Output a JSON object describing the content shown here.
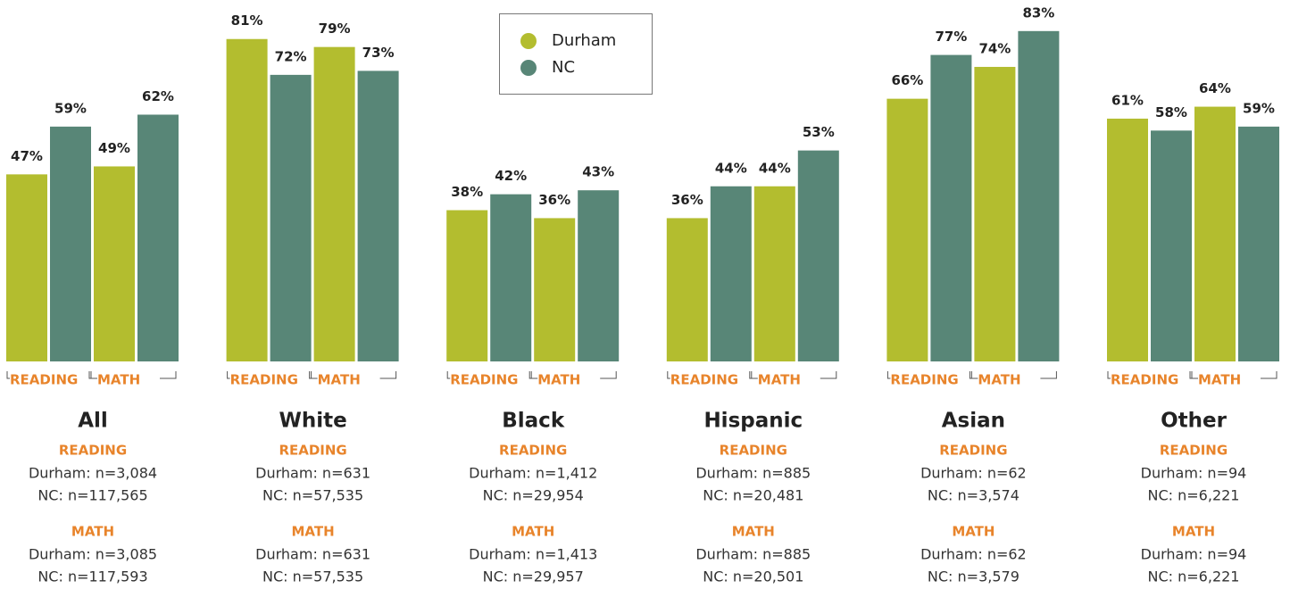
{
  "chart_data": {
    "type": "bar",
    "categories": [
      "All",
      "White",
      "Black",
      "Hispanic",
      "Asian",
      "Other"
    ],
    "subjects": [
      "READING",
      "MATH"
    ],
    "ylim": [
      0,
      100
    ],
    "series": [
      {
        "name": "Durham",
        "color": "#b3bd2f",
        "values": [
          [
            47,
            49
          ],
          [
            81,
            79
          ],
          [
            38,
            36
          ],
          [
            36,
            44
          ],
          [
            66,
            74
          ],
          [
            61,
            64
          ]
        ],
        "value_labels": [
          [
            "47%",
            "49%"
          ],
          [
            "81%",
            "79%"
          ],
          [
            "38%",
            "36%"
          ],
          [
            "36%",
            "44%"
          ],
          [
            "66%",
            "74%"
          ],
          [
            "61%",
            "64%"
          ]
        ]
      },
      {
        "name": "NC",
        "color": "#588677",
        "values": [
          [
            59,
            62
          ],
          [
            72,
            73
          ],
          [
            42,
            43
          ],
          [
            44,
            53
          ],
          [
            77,
            83
          ],
          [
            58,
            59
          ]
        ],
        "value_labels": [
          [
            "59%",
            "62%"
          ],
          [
            "72%",
            "73%"
          ],
          [
            "42%",
            "43%"
          ],
          [
            "44%",
            "53%"
          ],
          [
            "77%",
            "83%"
          ],
          [
            "58%",
            "59%"
          ]
        ]
      }
    ],
    "sample_sizes": [
      [
        [
          "Durham: n=3,084",
          "NC: n=117,565"
        ],
        [
          "Durham: n=3,085",
          "NC: n=117,593"
        ]
      ],
      [
        [
          "Durham: n=631",
          "NC: n=57,535"
        ],
        [
          "Durham: n=631",
          "NC: n=57,535"
        ]
      ],
      [
        [
          "Durham: n=1,412",
          "NC: n=29,954"
        ],
        [
          "Durham: n=1,413",
          "NC: n=29,957"
        ]
      ],
      [
        [
          "Durham: n=885",
          "NC: n=20,481"
        ],
        [
          "Durham: n=885",
          "NC: n=20,501"
        ]
      ],
      [
        [
          "Durham: n=62",
          "NC: n=3,574"
        ],
        [
          "Durham: n=62",
          "NC: n=3,579"
        ]
      ],
      [
        [
          "Durham: n=94",
          "NC: n=6,221"
        ],
        [
          "Durham: n=94",
          "NC: n=6,221"
        ]
      ]
    ]
  }
}
